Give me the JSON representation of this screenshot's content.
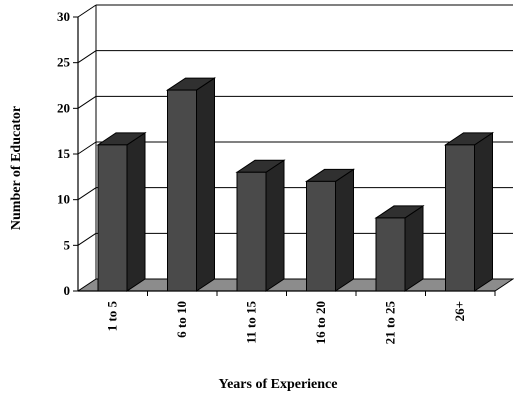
{
  "chart_data": {
    "type": "bar",
    "style": "3d",
    "categories": [
      "1 to 5",
      "6 to 10",
      "11 to 15",
      "16 to 20",
      "21 to 25",
      "26+"
    ],
    "values": [
      16,
      22,
      13,
      12,
      8,
      16
    ],
    "xlabel": "Years of Experience",
    "ylabel": "Number of Educator",
    "ylim": [
      0,
      30
    ],
    "yticks": [
      "0",
      "5",
      "10",
      "15",
      "20",
      "25",
      "30"
    ],
    "grid": true,
    "legend": "none",
    "colors": {
      "bar_front": "#4a4a4a",
      "bar_side": "#262626",
      "bar_top": "#303030",
      "floor": "#8c8c8c"
    }
  }
}
